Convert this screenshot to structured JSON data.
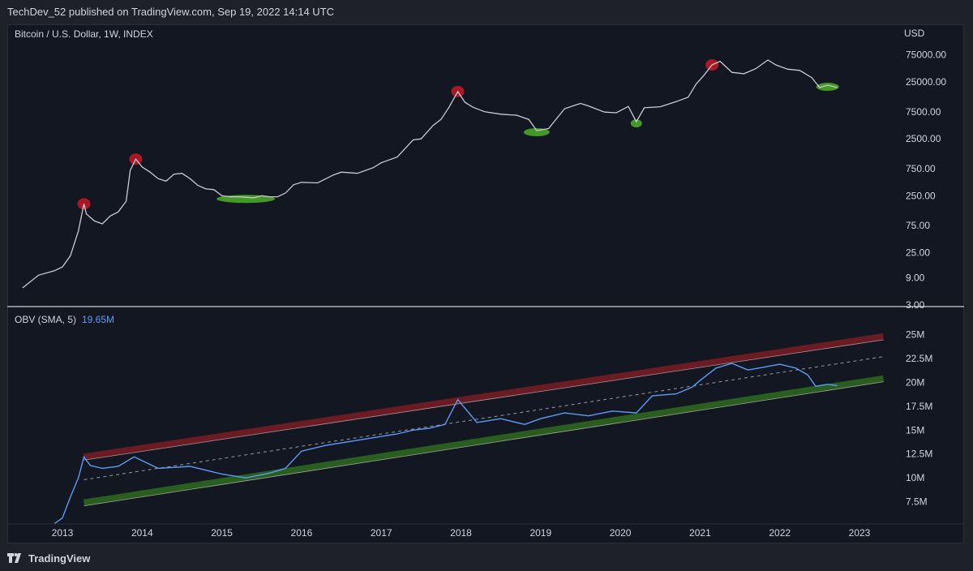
{
  "header": {
    "attribution": "TechDev_52 published on TradingView.com, Sep 19, 2022 14:14 UTC"
  },
  "footer": {
    "brand": "TradingView"
  },
  "colors": {
    "background": "#131722",
    "price_line": "#c8cad2",
    "obv_line": "#5b9cf6",
    "top_marker": "#c21b26",
    "bottom_marker": "#4caf27",
    "upper_channel": "#7a1c24",
    "lower_channel": "#2f6b1f",
    "axis_text": "#d1d4dc"
  },
  "chart_data": [
    {
      "type": "line",
      "title": "Bitcoin / U.S. Dollar, 1W, INDEX",
      "y_unit": "USD",
      "y_scale": "log",
      "y_ticks": [
        "75000.00",
        "25000.00",
        "7500.00",
        "2500.00",
        "750.00",
        "250.00",
        "75.00",
        "25.00",
        "9.00",
        "3.00"
      ],
      "x_ticks": [
        "2013",
        "2014",
        "2015",
        "2016",
        "2017",
        "2018",
        "2019",
        "2020",
        "2021",
        "2022",
        "2023"
      ],
      "x": [
        2012.5,
        2012.7,
        2012.9,
        2013.0,
        2013.1,
        2013.2,
        2013.27,
        2013.3,
        2013.4,
        2013.5,
        2013.6,
        2013.7,
        2013.8,
        2013.85,
        2013.92,
        2014.0,
        2014.1,
        2014.2,
        2014.3,
        2014.4,
        2014.5,
        2014.6,
        2014.7,
        2014.8,
        2014.9,
        2015.0,
        2015.1,
        2015.2,
        2015.3,
        2015.4,
        2015.5,
        2015.6,
        2015.7,
        2015.8,
        2015.9,
        2016.0,
        2016.2,
        2016.4,
        2016.5,
        2016.7,
        2016.9,
        2017.0,
        2017.2,
        2017.4,
        2017.5,
        2017.65,
        2017.75,
        2017.85,
        2017.96,
        2018.05,
        2018.15,
        2018.3,
        2018.5,
        2018.7,
        2018.85,
        2018.95,
        2019.1,
        2019.3,
        2019.5,
        2019.6,
        2019.8,
        2019.95,
        2020.1,
        2020.2,
        2020.3,
        2020.5,
        2020.7,
        2020.85,
        2020.95,
        2021.05,
        2021.15,
        2021.25,
        2021.4,
        2021.55,
        2021.7,
        2021.85,
        2021.95,
        2022.1,
        2022.25,
        2022.4,
        2022.5,
        2022.6,
        2022.72
      ],
      "series": [
        {
          "values": [
            6,
            10,
            12,
            14,
            22,
            60,
            180,
            120,
            90,
            80,
            110,
            130,
            200,
            700,
            1100,
            800,
            650,
            500,
            450,
            600,
            620,
            500,
            380,
            330,
            320,
            250,
            240,
            240,
            235,
            230,
            250,
            240,
            240,
            280,
            390,
            430,
            420,
            580,
            650,
            620,
            780,
            950,
            1200,
            2400,
            2500,
            4300,
            5500,
            9000,
            17000,
            11000,
            9000,
            7500,
            6800,
            6500,
            5500,
            3500,
            3800,
            8500,
            10500,
            9500,
            7400,
            7200,
            9300,
            5000,
            8800,
            9200,
            11300,
            13500,
            23000,
            33000,
            50000,
            58000,
            37000,
            35000,
            43000,
            61000,
            50000,
            42000,
            40000,
            30000,
            20000,
            22000,
            20000
          ]
        }
      ],
      "top_markers": [
        2013.27,
        2013.92,
        2017.96,
        2021.15
      ],
      "bottom_markers": [
        2015.3,
        2018.95,
        2020.2,
        2022.6
      ],
      "ylim": [
        3,
        110000
      ]
    },
    {
      "type": "line",
      "title": "OBV (SMA, 5)",
      "last_value": "19.65M",
      "y_ticks": [
        "25M",
        "22.5M",
        "20M",
        "17.5M",
        "15M",
        "12.5M",
        "10M",
        "7.5M"
      ],
      "x": [
        2012.9,
        2013.0,
        2013.1,
        2013.2,
        2013.27,
        2013.35,
        2013.5,
        2013.7,
        2013.9,
        2014.2,
        2014.6,
        2015.0,
        2015.3,
        2015.6,
        2015.8,
        2016.0,
        2016.3,
        2016.6,
        2016.9,
        2017.2,
        2017.4,
        2017.6,
        2017.8,
        2017.96,
        2018.2,
        2018.5,
        2018.8,
        2019.0,
        2019.3,
        2019.6,
        2019.9,
        2020.2,
        2020.4,
        2020.7,
        2020.9,
        2021.0,
        2021.2,
        2021.4,
        2021.6,
        2021.8,
        2022.0,
        2022.2,
        2022.35,
        2022.45,
        2022.6,
        2022.72
      ],
      "series": [
        {
          "values": [
            5.2,
            5.8,
            8.0,
            10.0,
            12.2,
            11.3,
            11.0,
            11.2,
            12.2,
            11.0,
            11.2,
            10.4,
            10.0,
            10.5,
            11.0,
            12.8,
            13.4,
            13.8,
            14.2,
            14.6,
            15.0,
            15.2,
            15.6,
            18.2,
            15.8,
            16.2,
            15.6,
            16.2,
            16.8,
            16.5,
            17.0,
            16.8,
            18.6,
            18.8,
            19.5,
            20.2,
            21.5,
            22.0,
            21.3,
            21.6,
            21.9,
            21.5,
            20.8,
            19.6,
            19.8,
            19.65
          ]
        }
      ],
      "channel_upper": [
        [
          2013.27,
          12.2
        ],
        [
          2023.3,
          24.8
        ]
      ],
      "channel_mid": [
        [
          2013.27,
          9.8
        ],
        [
          2023.3,
          22.7
        ]
      ],
      "channel_lower": [
        [
          2013.27,
          7.4
        ],
        [
          2023.3,
          20.4
        ]
      ],
      "ylim": [
        5,
        26.5
      ]
    }
  ]
}
